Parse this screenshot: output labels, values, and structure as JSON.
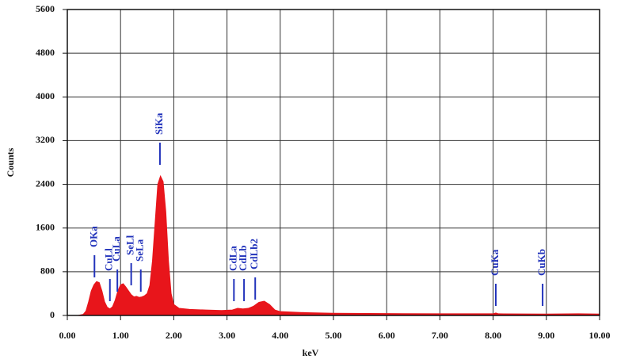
{
  "chart_data": {
    "type": "area",
    "xlabel": "keV",
    "ylabel": "Counts",
    "color": "#e8151b",
    "grid": true,
    "xlim": [
      0,
      10
    ],
    "ylim": [
      0,
      5600
    ],
    "xticks": [
      {
        "value": 0,
        "label": "0.00"
      },
      {
        "value": 1,
        "label": "1.00"
      },
      {
        "value": 2,
        "label": "2.00"
      },
      {
        "value": 3,
        "label": "3.00"
      },
      {
        "value": 4,
        "label": "4.00"
      },
      {
        "value": 5,
        "label": "5.00"
      },
      {
        "value": 6,
        "label": "6.00"
      },
      {
        "value": 7,
        "label": "7.00"
      },
      {
        "value": 8,
        "label": "8.00"
      },
      {
        "value": 9,
        "label": "9.00"
      },
      {
        "value": 10,
        "label": "10.00"
      }
    ],
    "yticks": [
      0,
      800,
      1600,
      2400,
      3200,
      4000,
      4800,
      5600
    ],
    "x": [
      0,
      0.2,
      0.3,
      0.35,
      0.4,
      0.45,
      0.5,
      0.55,
      0.6,
      0.65,
      0.7,
      0.75,
      0.8,
      0.85,
      0.9,
      0.95,
      1.0,
      1.05,
      1.1,
      1.15,
      1.2,
      1.25,
      1.3,
      1.35,
      1.4,
      1.45,
      1.5,
      1.55,
      1.6,
      1.65,
      1.7,
      1.75,
      1.8,
      1.85,
      1.9,
      1.95,
      2.0,
      2.1,
      2.3,
      2.6,
      2.9,
      3.1,
      3.2,
      3.3,
      3.4,
      3.5,
      3.6,
      3.7,
      3.8,
      3.9,
      4.0,
      4.5,
      5.0,
      6.0,
      7.0,
      8.0,
      8.05,
      8.1,
      9.0,
      9.6,
      10.0
    ],
    "values": [
      0,
      0,
      20,
      80,
      250,
      450,
      560,
      620,
      600,
      450,
      250,
      150,
      120,
      160,
      280,
      450,
      560,
      580,
      520,
      450,
      380,
      340,
      350,
      330,
      340,
      360,
      400,
      550,
      1000,
      1700,
      2400,
      2550,
      2450,
      1900,
      1000,
      400,
      200,
      130,
      110,
      100,
      90,
      100,
      130,
      120,
      130,
      170,
      240,
      260,
      200,
      100,
      70,
      50,
      40,
      35,
      30,
      30,
      45,
      30,
      25,
      30,
      25
    ],
    "annotations": [
      {
        "text": "OKa",
        "x": 0.51,
        "y": 697
      },
      {
        "text": "CuLl",
        "x": 0.8,
        "y": 261
      },
      {
        "text": "CuLa",
        "x": 0.94,
        "y": 435
      },
      {
        "text": "SeLl",
        "x": 1.2,
        "y": 551
      },
      {
        "text": "SeLa",
        "x": 1.38,
        "y": 435
      },
      {
        "text": "SiKa",
        "x": 1.74,
        "y": 2757
      },
      {
        "text": "CdLa",
        "x": 3.13,
        "y": 261
      },
      {
        "text": "CdLb",
        "x": 3.32,
        "y": 261
      },
      {
        "text": "CdLb2",
        "x": 3.53,
        "y": 290
      },
      {
        "text": "CuKa",
        "x": 8.05,
        "y": 174
      },
      {
        "text": "CuKb",
        "x": 8.93,
        "y": 174
      }
    ]
  }
}
